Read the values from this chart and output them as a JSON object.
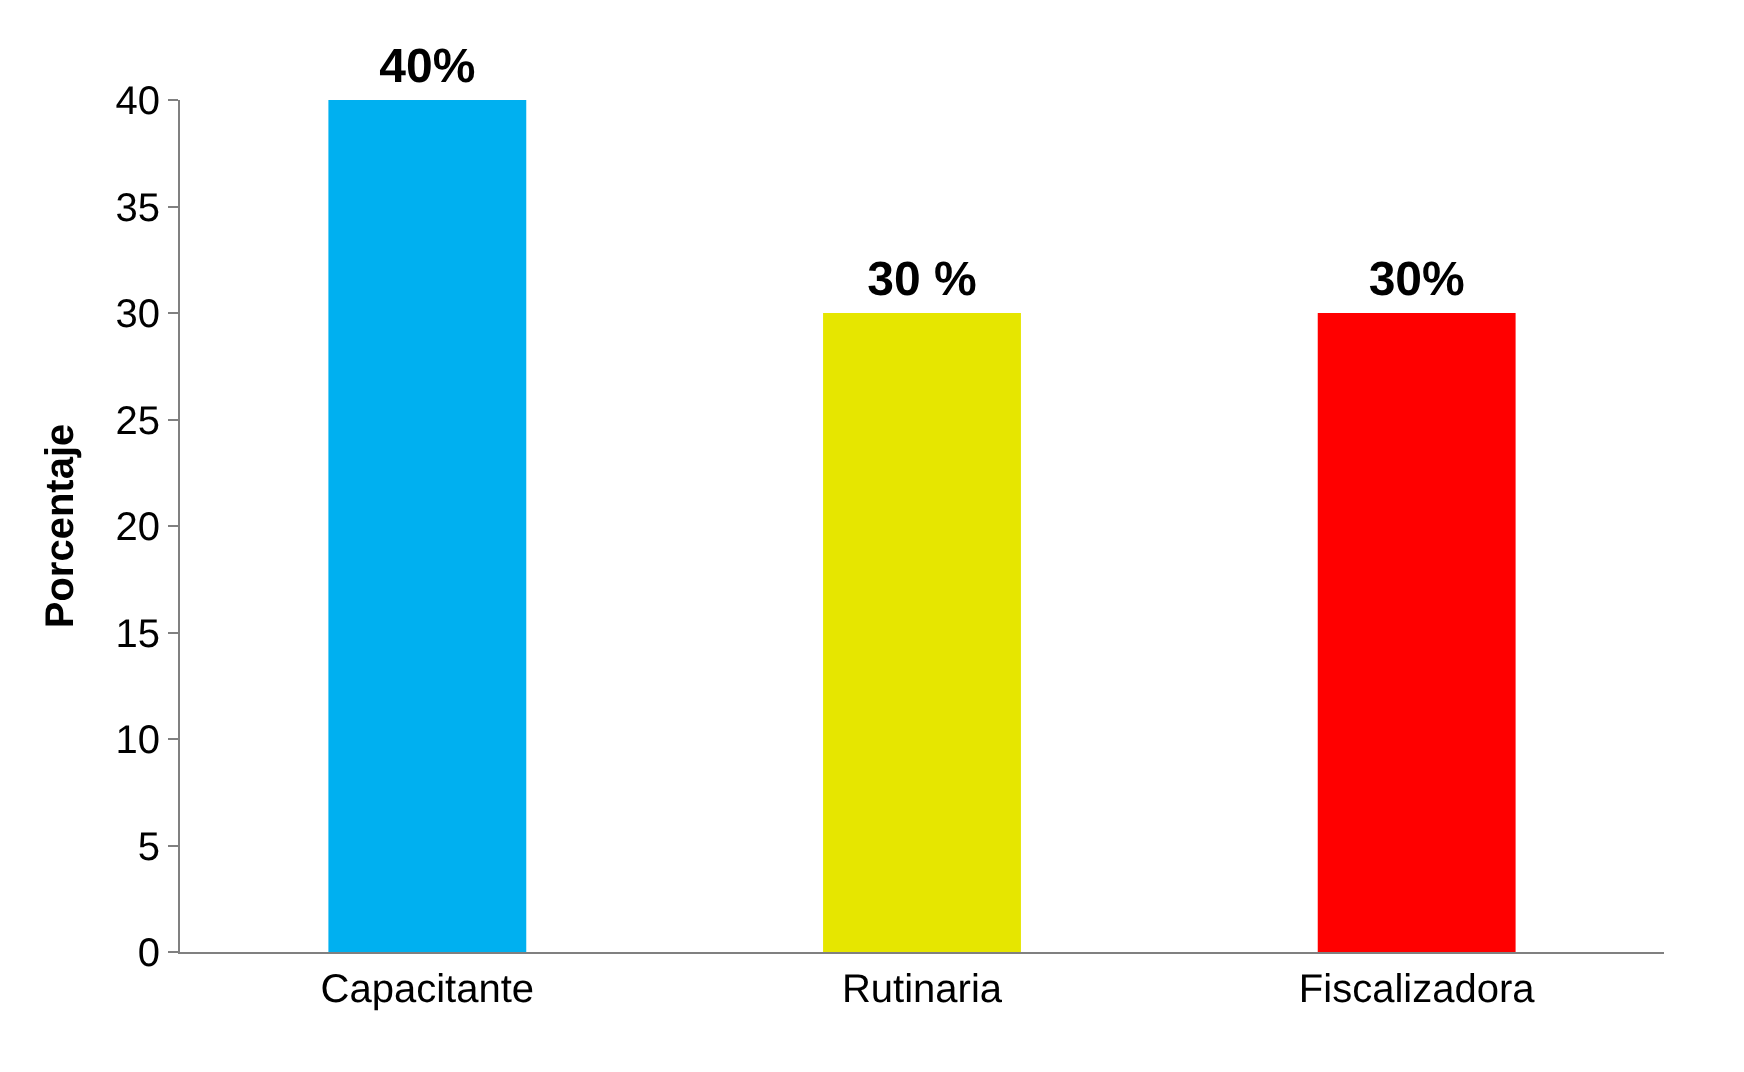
{
  "chart_data": {
    "type": "bar",
    "ylabel": "Porcentaje",
    "categories": [
      "Capacitante",
      "Rutinaria",
      "Fiscalizadora"
    ],
    "values": [
      40,
      30,
      30
    ],
    "colors": [
      "#00b0f0",
      "#e6e600",
      "#ff0000"
    ],
    "value_labels": [
      "40%",
      "30 %",
      "30%"
    ],
    "ylim": [
      0,
      40
    ],
    "yticks": [
      0,
      5,
      10,
      15,
      20,
      25,
      30,
      35,
      40
    ]
  }
}
